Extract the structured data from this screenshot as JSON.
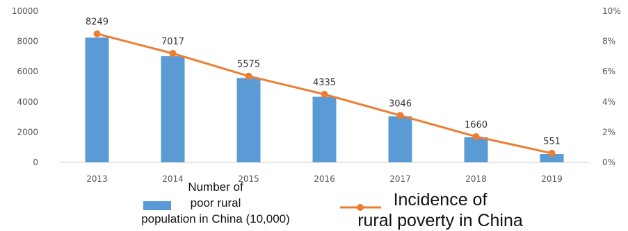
{
  "chart_data": {
    "type": "bar",
    "categories": [
      "2013",
      "2014",
      "2015",
      "2016",
      "2017",
      "2018",
      "2019"
    ],
    "series": [
      {
        "name": "Number of poor rural population in China (10,000)",
        "name_lines": [
          "Number of",
          "poor rural",
          "population in China (10,000)"
        ],
        "kind": "bar",
        "axis": "left",
        "color": "#5B9BD5",
        "values": [
          8249,
          7017,
          5575,
          4335,
          3046,
          1660,
          551
        ],
        "labels": [
          "8249",
          "7017",
          "5575",
          "4335",
          "3046",
          "1660",
          "551"
        ]
      },
      {
        "name": "Incidence of rural poverty in China",
        "name_lines": [
          "Incidence of",
          "rural poverty in China"
        ],
        "kind": "line",
        "axis": "right",
        "color": "#ED7D31",
        "values": [
          8.5,
          7.2,
          5.7,
          4.5,
          3.1,
          1.7,
          0.6
        ]
      }
    ],
    "y_left": {
      "ylim": [
        0,
        10000
      ],
      "ticks": [
        "0",
        "2000",
        "4000",
        "6000",
        "8000",
        "10000"
      ]
    },
    "y_right": {
      "ylim": [
        0,
        10
      ],
      "ticks": [
        "0%",
        "2%",
        "4%",
        "6%",
        "8%",
        "10%"
      ]
    },
    "grid": false,
    "legend_position": "bottom"
  }
}
